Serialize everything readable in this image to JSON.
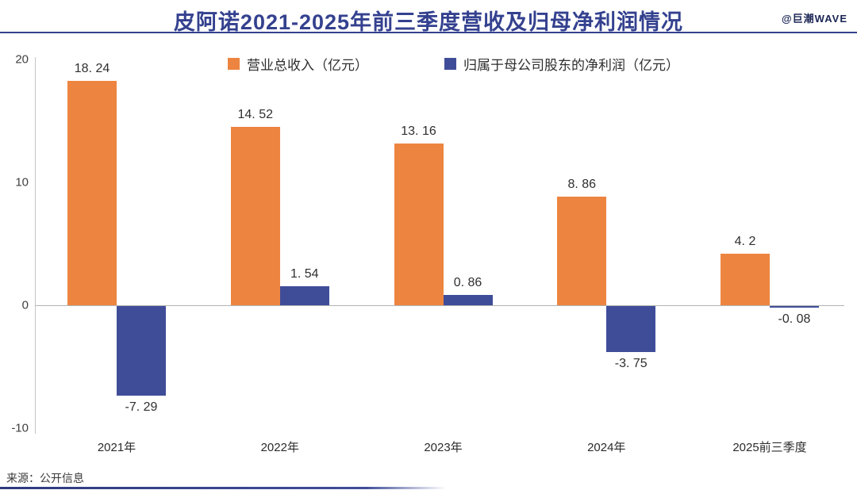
{
  "header": {
    "title": "皮阿诺2021-2025年前三季度营收及归母净利润情况",
    "watermark": "@巨潮WAVE"
  },
  "footer": {
    "source": "来源：公开信息"
  },
  "colors": {
    "revenue": "#ED8540",
    "profit": "#3F4D99",
    "title_blue": "#34418f",
    "axis_gray": "#b3b3b3"
  },
  "chart_data": {
    "type": "bar",
    "title": "皮阿诺2021-2025年前三季度营收及归母净利润情况",
    "categories": [
      "2021年",
      "2022年",
      "2023年",
      "2024年",
      "2025前三季度"
    ],
    "series": [
      {
        "name": "营业总收入（亿元）",
        "color": "#ED8540",
        "values": [
          18.24,
          14.52,
          13.16,
          8.86,
          4.2
        ],
        "labels": [
          "18. 24",
          "14. 52",
          "13. 16",
          "8. 86",
          "4. 2"
        ]
      },
      {
        "name": "归属于母公司股东的净利润（亿元）",
        "color": "#3F4D99",
        "values": [
          -7.29,
          1.54,
          0.86,
          -3.75,
          -0.08
        ],
        "labels": [
          "-7. 29",
          "1. 54",
          "0. 86",
          "-3. 75",
          "-0. 08"
        ]
      }
    ],
    "ylim": [
      -10,
      20
    ],
    "yticks": [
      20,
      10,
      0,
      -10
    ],
    "legend_position": "top",
    "grid": false,
    "xlabel": "",
    "ylabel": ""
  }
}
